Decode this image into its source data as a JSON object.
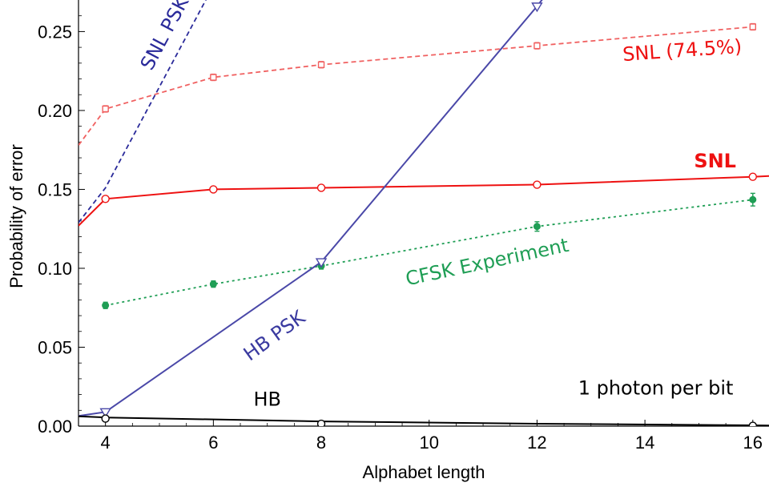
{
  "chart_data": {
    "type": "line",
    "title": "",
    "xlabel": "Alphabet length",
    "ylabel": "Probability of error",
    "xlim": [
      3.5,
      16.3
    ],
    "ylim": [
      0,
      0.27
    ],
    "x_ticks": [
      4,
      6,
      8,
      10,
      12,
      14,
      16
    ],
    "y_ticks": [
      0.0,
      0.05,
      0.1,
      0.15,
      0.2,
      0.25
    ],
    "grid": false,
    "legend": "none",
    "series": [
      {
        "name": "SNL (74.5%)",
        "color": "#f06060",
        "dash": "dashed",
        "marker": "open-square",
        "line_x": [
          3.5,
          4,
          6,
          8,
          12,
          16
        ],
        "line_y": [
          0.178,
          0.201,
          0.221,
          0.229,
          0.241,
          0.253
        ],
        "x": [
          4,
          6,
          8,
          12,
          16
        ],
        "y": [
          0.201,
          0.221,
          0.229,
          0.241,
          0.253
        ],
        "err": [
          0.002,
          0.002,
          0.002,
          0.002,
          0.002
        ]
      },
      {
        "name": "SNL",
        "color": "#ee1111",
        "dash": "solid",
        "marker": "open-circle",
        "line_x": [
          3.5,
          4,
          6,
          8,
          12,
          16,
          16.3
        ],
        "line_y": [
          0.127,
          0.144,
          0.15,
          0.151,
          0.153,
          0.158,
          0.1585
        ],
        "x": [
          4,
          6,
          8,
          12,
          16
        ],
        "y": [
          0.144,
          0.15,
          0.151,
          0.153,
          0.158
        ],
        "err": []
      },
      {
        "name": "CFSK Experiment",
        "color": "#1f9e55",
        "dash": "dotted",
        "marker": "filled-circle",
        "line_x": [
          4,
          6,
          8,
          12,
          16
        ],
        "line_y": [
          0.0765,
          0.09,
          0.1015,
          0.1265,
          0.1435
        ],
        "x": [
          4,
          6,
          8,
          12,
          16
        ],
        "y": [
          0.0765,
          0.09,
          0.1015,
          0.1265,
          0.1435
        ],
        "err": [
          0.002,
          0.002,
          0.002,
          0.003,
          0.004
        ]
      },
      {
        "name": "SNL PSK",
        "color": "#2a2a9a",
        "dash": "dashed",
        "marker": "none",
        "line_x": [
          3.5,
          4,
          6.0
        ],
        "line_y": [
          0.129,
          0.151,
          0.279
        ],
        "x": [],
        "y": [],
        "err": []
      },
      {
        "name": "HB PSK",
        "color": "#4a48a8",
        "dash": "solid",
        "marker": "open-triangle-down",
        "line_x": [
          3.5,
          4,
          8,
          12,
          12.2
        ],
        "line_y": [
          0.0065,
          0.009,
          0.104,
          0.266,
          0.275
        ],
        "x": [
          4,
          8,
          12
        ],
        "y": [
          0.009,
          0.104,
          0.266
        ],
        "err": []
      },
      {
        "name": "HB",
        "color": "#000000",
        "dash": "solid",
        "marker": "open-circle",
        "line_x": [
          3.5,
          4,
          8,
          12,
          16,
          16.3
        ],
        "line_y": [
          0.0062,
          0.0055,
          0.003,
          0.0015,
          0.0005,
          0.0004
        ],
        "x": [
          4,
          8,
          16
        ],
        "y": [
          0.0048,
          0.0015,
          0.0002
        ],
        "err": []
      }
    ],
    "annotations": [
      {
        "text": "SNL PSK",
        "color": "#2a2a9a",
        "x": 5.2,
        "y": 0.247,
        "angle": -62,
        "bold": false
      },
      {
        "text": "SNL (74.5%)",
        "color": "#ee1111",
        "x": 14.7,
        "y": 0.234,
        "angle": -4,
        "bold": false
      },
      {
        "text": "SNL",
        "color": "#ee1111",
        "x": 15.3,
        "y": 0.164,
        "angle": 0,
        "bold": true
      },
      {
        "text": "CFSK Experiment",
        "color": "#1f9e55",
        "x": 11.1,
        "y": 0.1,
        "angle": -12,
        "bold": false
      },
      {
        "text": "HB PSK",
        "color": "#3a3aa0",
        "x": 7.2,
        "y": 0.054,
        "angle": -36,
        "bold": false
      },
      {
        "text": "HB",
        "color": "#000000",
        "x": 7.0,
        "y": 0.013,
        "angle": 0,
        "bold": false
      },
      {
        "text": "1 photon per bit",
        "color": "#000000",
        "x": 14.2,
        "y": 0.02,
        "angle": 0,
        "bold": false
      }
    ]
  }
}
